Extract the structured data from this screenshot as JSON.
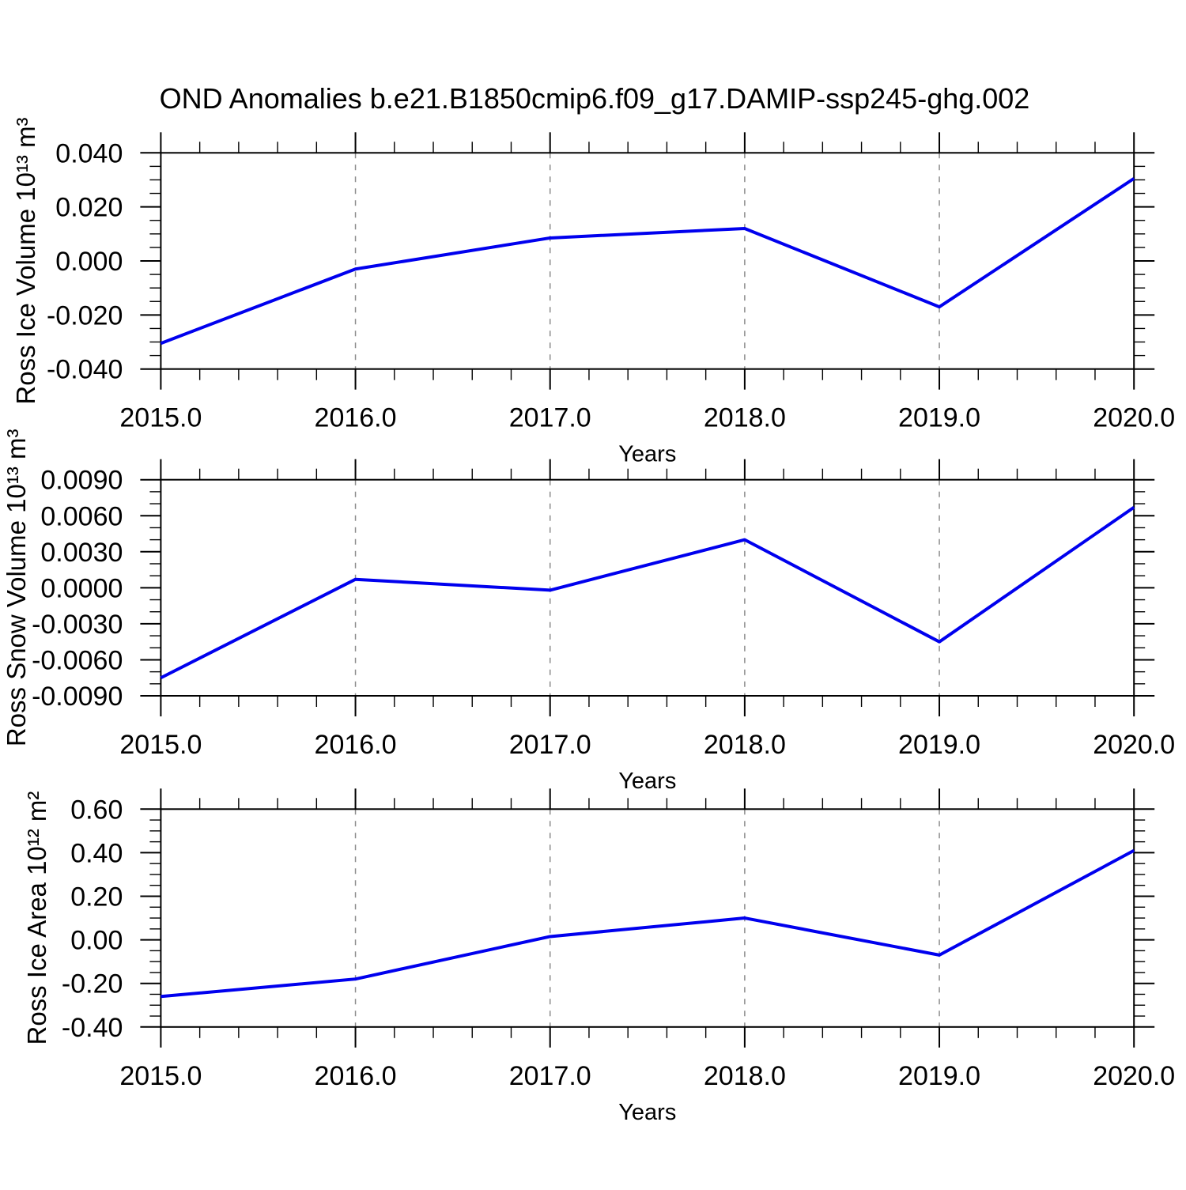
{
  "title": "OND Anomalies b.e21.B1850cmip6.f09_g17.DAMIP-ssp245-ghg.002",
  "accent_color": "#0000ee",
  "chart_data": [
    {
      "type": "line",
      "id": "ross-ice-volume",
      "title": "",
      "ylabel": "Ross Ice Volume 10¹³ m³",
      "xlabel": "Years",
      "x": [
        2015.0,
        2016.0,
        2017.0,
        2018.0,
        2019.0,
        2020.0
      ],
      "x_tick_labels": [
        "2015.0",
        "2016.0",
        "2017.0",
        "2018.0",
        "2019.0",
        "2020.0"
      ],
      "values": [
        -0.0305,
        -0.003,
        0.0085,
        0.012,
        -0.017,
        0.0305
      ],
      "xlim": [
        2015.0,
        2020.0
      ],
      "ylim": [
        -0.04,
        0.04
      ],
      "y_tick_values": [
        0.04,
        0.02,
        0.0,
        -0.02,
        -0.04
      ],
      "y_tick_labels": [
        "0.040",
        "0.020",
        "0.000",
        "-0.020",
        "-0.040"
      ],
      "y_minor_divisions": 4,
      "x_minor_divisions": 5,
      "grid_x": [
        2016,
        2017,
        2018,
        2019
      ],
      "grid_style": "dashed",
      "legend": "none",
      "line_color": "#0000ee"
    },
    {
      "type": "line",
      "id": "ross-snow-volume",
      "title": "",
      "ylabel": "Ross Snow Volume 10¹³ m³",
      "xlabel": "Years",
      "x": [
        2015.0,
        2016.0,
        2017.0,
        2018.0,
        2019.0,
        2020.0
      ],
      "x_tick_labels": [
        "2015.0",
        "2016.0",
        "2017.0",
        "2018.0",
        "2019.0",
        "2020.0"
      ],
      "values": [
        -0.0075,
        0.0007,
        -0.0002,
        0.004,
        -0.0045,
        0.0067
      ],
      "xlim": [
        2015.0,
        2020.0
      ],
      "ylim": [
        -0.009,
        0.009
      ],
      "y_tick_values": [
        0.009,
        0.006,
        0.003,
        0.0,
        -0.003,
        -0.006,
        -0.009
      ],
      "y_tick_labels": [
        "0.0090",
        "0.0060",
        "0.0030",
        "0.0000",
        "-0.0030",
        "-0.0060",
        "-0.0090"
      ],
      "y_minor_divisions": 3,
      "x_minor_divisions": 5,
      "grid_x": [
        2016,
        2017,
        2018,
        2019
      ],
      "grid_style": "dashed",
      "legend": "none",
      "line_color": "#0000ee"
    },
    {
      "type": "line",
      "id": "ross-ice-area",
      "title": "",
      "ylabel": "Ross Ice Area 10¹² m²",
      "xlabel": "Years",
      "x": [
        2015.0,
        2016.0,
        2017.0,
        2018.0,
        2019.0,
        2020.0
      ],
      "x_tick_labels": [
        "2015.0",
        "2016.0",
        "2017.0",
        "2018.0",
        "2019.0",
        "2020.0"
      ],
      "values": [
        -0.26,
        -0.18,
        0.015,
        0.1,
        -0.07,
        0.41
      ],
      "xlim": [
        2015.0,
        2020.0
      ],
      "ylim": [
        -0.4,
        0.6
      ],
      "y_tick_values": [
        0.6,
        0.4,
        0.2,
        0.0,
        -0.2,
        -0.4
      ],
      "y_tick_labels": [
        "0.60",
        "0.40",
        "0.20",
        "0.00",
        "-0.20",
        "-0.40"
      ],
      "y_minor_divisions": 4,
      "x_minor_divisions": 5,
      "grid_x": [
        2016,
        2017,
        2018,
        2019
      ],
      "grid_style": "dashed",
      "legend": "none",
      "line_color": "#0000ee"
    }
  ]
}
